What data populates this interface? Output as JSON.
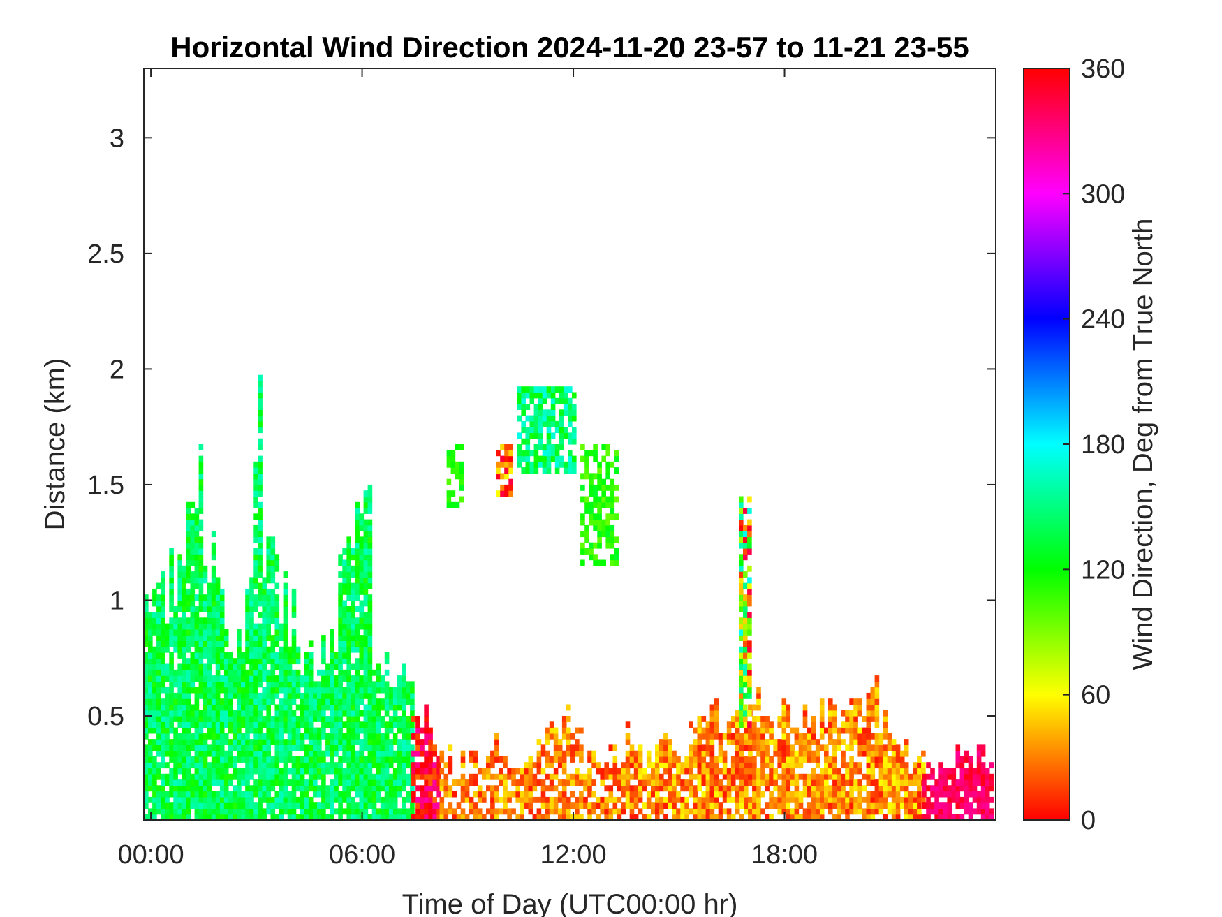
{
  "chart_data": {
    "type": "heatmap",
    "title": "Horizontal Wind Direction 2024-11-20 23-57 to 11-21 23-55",
    "xlabel": "Time of Day (UTC00:00 hr)",
    "ylabel": "Distance (km)",
    "xlim_hours": [
      -0.2,
      24.0
    ],
    "ylim_km": [
      0.05,
      3.3
    ],
    "x_ticks": [
      {
        "value": 0,
        "label": "00:00"
      },
      {
        "value": 6,
        "label": "06:00"
      },
      {
        "value": 12,
        "label": "12:00"
      },
      {
        "value": 18,
        "label": "18:00"
      }
    ],
    "y_ticks": [
      {
        "value": 0.5,
        "label": "0.5"
      },
      {
        "value": 1,
        "label": "1"
      },
      {
        "value": 1.5,
        "label": "1.5"
      },
      {
        "value": 2,
        "label": "2"
      },
      {
        "value": 2.5,
        "label": "2.5"
      },
      {
        "value": 3,
        "label": "3"
      }
    ],
    "grid": false,
    "colorbar": {
      "label": "Wind Direction, Deg from True North",
      "range": [
        0,
        360
      ],
      "ticks": [
        {
          "value": 0,
          "label": "0"
        },
        {
          "value": 60,
          "label": "60"
        },
        {
          "value": 120,
          "label": "120"
        },
        {
          "value": 180,
          "label": "180"
        },
        {
          "value": 240,
          "label": "240"
        },
        {
          "value": 300,
          "label": "300"
        },
        {
          "value": 360,
          "label": "360"
        }
      ],
      "colormap": "hsv"
    },
    "cell_resolution": {
      "time_hours": 0.12,
      "distance_km": 0.025
    },
    "regions": [
      {
        "t_start": -0.2,
        "t_end": 7.4,
        "top_km": [
          0.97,
          1.0,
          1.05,
          1.1,
          1.15,
          1.3,
          1.45,
          1.2,
          1.15,
          0.9,
          0.85,
          0.8,
          1.0,
          1.74,
          1.2,
          1.1,
          1.05,
          0.9,
          0.75,
          0.72,
          0.72,
          0.75,
          0.8,
          1.1,
          1.2,
          1.5,
          1.3,
          0.75,
          0.72,
          0.7,
          0.7,
          0.68
        ],
        "dir_deg": [
          112,
          165
        ],
        "fill": 0.9
      },
      {
        "t_start": 7.4,
        "t_end": 8.2,
        "top_km": [
          0.45,
          0.5,
          0.6,
          0.42,
          0.35,
          0.3
        ],
        "dir_deg": [
          -40,
          25
        ],
        "fill": 0.85
      },
      {
        "t_start": 8.2,
        "t_end": 13.6,
        "top_km": [
          0.35,
          0.3,
          0.32,
          0.3,
          0.35,
          0.3,
          0.28,
          0.32,
          0.4,
          0.45,
          0.5,
          0.45,
          0.35,
          0.3,
          0.35,
          0.4
        ],
        "dir_deg": [
          5,
          55
        ],
        "fill": 0.65
      },
      {
        "t_start": 13.6,
        "t_end": 21.9,
        "top_km": [
          0.32,
          0.36,
          0.4,
          0.3,
          0.45,
          0.5,
          0.45,
          0.48,
          0.55,
          0.45,
          0.5,
          0.48,
          0.42,
          0.5,
          0.55,
          0.5,
          0.6,
          0.45,
          0.4,
          0.3
        ],
        "dir_deg": [
          5,
          60
        ],
        "fill": 0.8
      },
      {
        "t_start": 21.9,
        "t_end": 24.0,
        "top_km": [
          0.27,
          0.25,
          0.28,
          0.35,
          0.3,
          0.38,
          0.32
        ],
        "dir_deg": [
          325,
          355
        ],
        "fill": 0.85
      },
      {
        "t_start": 10.4,
        "t_end": 12.0,
        "dist_km": [
          1.55,
          1.92
        ],
        "dir_deg": [
          115,
          175
        ],
        "fill": 0.75
      },
      {
        "t_start": 12.2,
        "t_end": 13.2,
        "dist_km": [
          1.15,
          1.65
        ],
        "dir_deg": [
          95,
          130
        ],
        "fill": 0.6
      },
      {
        "t_start": 16.7,
        "t_end": 17.0,
        "dist_km": [
          0.45,
          1.43
        ],
        "dir_deg": [
          -20,
          180
        ],
        "fill": 0.8
      },
      {
        "t_start": 8.4,
        "t_end": 8.8,
        "dist_km": [
          1.4,
          1.66
        ],
        "dir_deg": [
          100,
          130
        ],
        "fill": 0.6
      },
      {
        "t_start": 9.8,
        "t_end": 10.2,
        "dist_km": [
          1.45,
          1.65
        ],
        "dir_deg": [
          -20,
          60
        ],
        "fill": 0.6
      }
    ]
  }
}
